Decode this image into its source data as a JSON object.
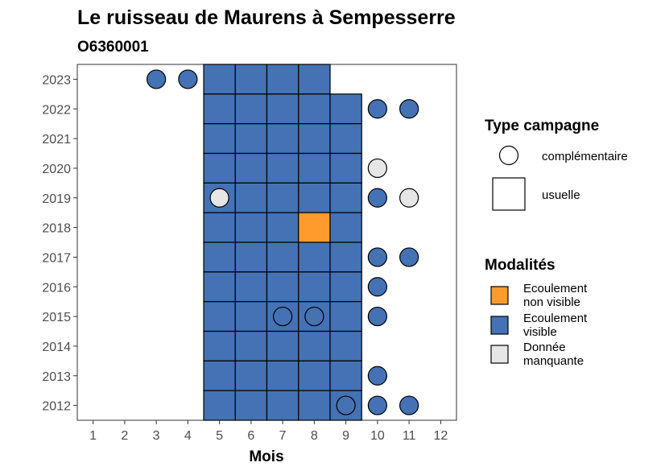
{
  "chart_data": {
    "type": "heatmap",
    "title": "Le ruisseau de Maurens à Sempesserre",
    "subtitle": "O6360001",
    "xlabel": "Mois",
    "ylabel": "",
    "x_ticks": [
      "1",
      "2",
      "3",
      "4",
      "5",
      "6",
      "7",
      "8",
      "9",
      "10",
      "11",
      "12"
    ],
    "y_ticks": [
      "2012",
      "2013",
      "2014",
      "2015",
      "2016",
      "2017",
      "2018",
      "2019",
      "2020",
      "2021",
      "2022",
      "2023"
    ],
    "xlim": [
      0.5,
      12.5
    ],
    "ylim": [
      2011.5,
      2023.5
    ],
    "grid": false,
    "legend_position": "right",
    "colors": {
      "Ecoulement non visible": "#ff9b2d",
      "Ecoulement visible": "#4472b4",
      "Donnée manquante": "#e6e6e6"
    },
    "cells": [
      {
        "year": 2023,
        "month": 5,
        "modalite": "Ecoulement visible"
      },
      {
        "year": 2023,
        "month": 6,
        "modalite": "Ecoulement visible"
      },
      {
        "year": 2023,
        "month": 7,
        "modalite": "Ecoulement visible"
      },
      {
        "year": 2023,
        "month": 8,
        "modalite": "Ecoulement visible"
      },
      {
        "year": 2022,
        "month": 5,
        "modalite": "Ecoulement visible"
      },
      {
        "year": 2022,
        "month": 6,
        "modalite": "Ecoulement visible"
      },
      {
        "year": 2022,
        "month": 7,
        "modalite": "Ecoulement visible"
      },
      {
        "year": 2022,
        "month": 8,
        "modalite": "Ecoulement visible"
      },
      {
        "year": 2022,
        "month": 9,
        "modalite": "Ecoulement visible"
      },
      {
        "year": 2021,
        "month": 5,
        "modalite": "Ecoulement visible"
      },
      {
        "year": 2021,
        "month": 6,
        "modalite": "Ecoulement visible"
      },
      {
        "year": 2021,
        "month": 7,
        "modalite": "Ecoulement visible"
      },
      {
        "year": 2021,
        "month": 8,
        "modalite": "Ecoulement visible"
      },
      {
        "year": 2021,
        "month": 9,
        "modalite": "Ecoulement visible"
      },
      {
        "year": 2020,
        "month": 5,
        "modalite": "Ecoulement visible"
      },
      {
        "year": 2020,
        "month": 6,
        "modalite": "Ecoulement visible"
      },
      {
        "year": 2020,
        "month": 7,
        "modalite": "Ecoulement visible"
      },
      {
        "year": 2020,
        "month": 8,
        "modalite": "Ecoulement visible"
      },
      {
        "year": 2020,
        "month": 9,
        "modalite": "Ecoulement visible"
      },
      {
        "year": 2019,
        "month": 5,
        "modalite": "Ecoulement visible"
      },
      {
        "year": 2019,
        "month": 6,
        "modalite": "Ecoulement visible"
      },
      {
        "year": 2019,
        "month": 7,
        "modalite": "Ecoulement visible"
      },
      {
        "year": 2019,
        "month": 8,
        "modalite": "Ecoulement visible"
      },
      {
        "year": 2019,
        "month": 9,
        "modalite": "Ecoulement visible"
      },
      {
        "year": 2018,
        "month": 5,
        "modalite": "Ecoulement visible"
      },
      {
        "year": 2018,
        "month": 6,
        "modalite": "Ecoulement visible"
      },
      {
        "year": 2018,
        "month": 7,
        "modalite": "Ecoulement visible"
      },
      {
        "year": 2018,
        "month": 8,
        "modalite": "Ecoulement non visible"
      },
      {
        "year": 2018,
        "month": 9,
        "modalite": "Ecoulement visible"
      },
      {
        "year": 2017,
        "month": 5,
        "modalite": "Ecoulement visible"
      },
      {
        "year": 2017,
        "month": 6,
        "modalite": "Ecoulement visible"
      },
      {
        "year": 2017,
        "month": 7,
        "modalite": "Ecoulement visible"
      },
      {
        "year": 2017,
        "month": 8,
        "modalite": "Ecoulement visible"
      },
      {
        "year": 2017,
        "month": 9,
        "modalite": "Ecoulement visible"
      },
      {
        "year": 2016,
        "month": 5,
        "modalite": "Ecoulement visible"
      },
      {
        "year": 2016,
        "month": 6,
        "modalite": "Ecoulement visible"
      },
      {
        "year": 2016,
        "month": 7,
        "modalite": "Ecoulement visible"
      },
      {
        "year": 2016,
        "month": 8,
        "modalite": "Ecoulement visible"
      },
      {
        "year": 2016,
        "month": 9,
        "modalite": "Ecoulement visible"
      },
      {
        "year": 2015,
        "month": 5,
        "modalite": "Ecoulement visible"
      },
      {
        "year": 2015,
        "month": 6,
        "modalite": "Ecoulement visible"
      },
      {
        "year": 2015,
        "month": 7,
        "modalite": "Ecoulement visible"
      },
      {
        "year": 2015,
        "month": 8,
        "modalite": "Ecoulement visible"
      },
      {
        "year": 2015,
        "month": 9,
        "modalite": "Ecoulement visible"
      },
      {
        "year": 2014,
        "month": 5,
        "modalite": "Ecoulement visible"
      },
      {
        "year": 2014,
        "month": 6,
        "modalite": "Ecoulement visible"
      },
      {
        "year": 2014,
        "month": 7,
        "modalite": "Ecoulement visible"
      },
      {
        "year": 2014,
        "month": 8,
        "modalite": "Ecoulement visible"
      },
      {
        "year": 2014,
        "month": 9,
        "modalite": "Ecoulement visible"
      },
      {
        "year": 2013,
        "month": 5,
        "modalite": "Ecoulement visible"
      },
      {
        "year": 2013,
        "month": 6,
        "modalite": "Ecoulement visible"
      },
      {
        "year": 2013,
        "month": 7,
        "modalite": "Ecoulement visible"
      },
      {
        "year": 2013,
        "month": 8,
        "modalite": "Ecoulement visible"
      },
      {
        "year": 2013,
        "month": 9,
        "modalite": "Ecoulement visible"
      },
      {
        "year": 2012,
        "month": 5,
        "modalite": "Ecoulement visible"
      },
      {
        "year": 2012,
        "month": 6,
        "modalite": "Ecoulement visible"
      },
      {
        "year": 2012,
        "month": 7,
        "modalite": "Ecoulement visible"
      },
      {
        "year": 2012,
        "month": 8,
        "modalite": "Ecoulement visible"
      },
      {
        "year": 2012,
        "month": 9,
        "modalite": "Ecoulement visible"
      }
    ],
    "points": [
      {
        "year": 2023,
        "month": 3,
        "modalite": "Ecoulement visible"
      },
      {
        "year": 2023,
        "month": 4,
        "modalite": "Ecoulement visible"
      },
      {
        "year": 2022,
        "month": 10,
        "modalite": "Ecoulement visible"
      },
      {
        "year": 2022,
        "month": 11,
        "modalite": "Ecoulement visible"
      },
      {
        "year": 2020,
        "month": 10,
        "modalite": "Donnée manquante"
      },
      {
        "year": 2019,
        "month": 5,
        "modalite": "Donnée manquante"
      },
      {
        "year": 2019,
        "month": 10,
        "modalite": "Ecoulement visible"
      },
      {
        "year": 2019,
        "month": 11,
        "modalite": "Donnée manquante"
      },
      {
        "year": 2017,
        "month": 10,
        "modalite": "Ecoulement visible"
      },
      {
        "year": 2017,
        "month": 11,
        "modalite": "Ecoulement visible"
      },
      {
        "year": 2016,
        "month": 10,
        "modalite": "Ecoulement visible"
      },
      {
        "year": 2015,
        "month": 7,
        "modalite": "Ecoulement visible"
      },
      {
        "year": 2015,
        "month": 8,
        "modalite": "Ecoulement visible"
      },
      {
        "year": 2015,
        "month": 10,
        "modalite": "Ecoulement visible"
      },
      {
        "year": 2013,
        "month": 10,
        "modalite": "Ecoulement visible"
      },
      {
        "year": 2012,
        "month": 9,
        "modalite": "Ecoulement visible"
      },
      {
        "year": 2012,
        "month": 10,
        "modalite": "Ecoulement visible"
      },
      {
        "year": 2012,
        "month": 11,
        "modalite": "Ecoulement visible"
      }
    ],
    "legend_type": {
      "title": "Type campagne",
      "items": [
        {
          "label": "complémentaire",
          "shape": "circle"
        },
        {
          "label": "usuelle",
          "shape": "square"
        }
      ]
    },
    "legend_modalites": {
      "title": "Modalités",
      "items": [
        {
          "lines": [
            "Ecoulement",
            "non visible"
          ],
          "key": "Ecoulement non visible"
        },
        {
          "lines": [
            "Ecoulement",
            "visible"
          ],
          "key": "Ecoulement visible"
        },
        {
          "lines": [
            "Donnée",
            "manquante"
          ],
          "key": "Donnée manquante"
        }
      ]
    }
  }
}
